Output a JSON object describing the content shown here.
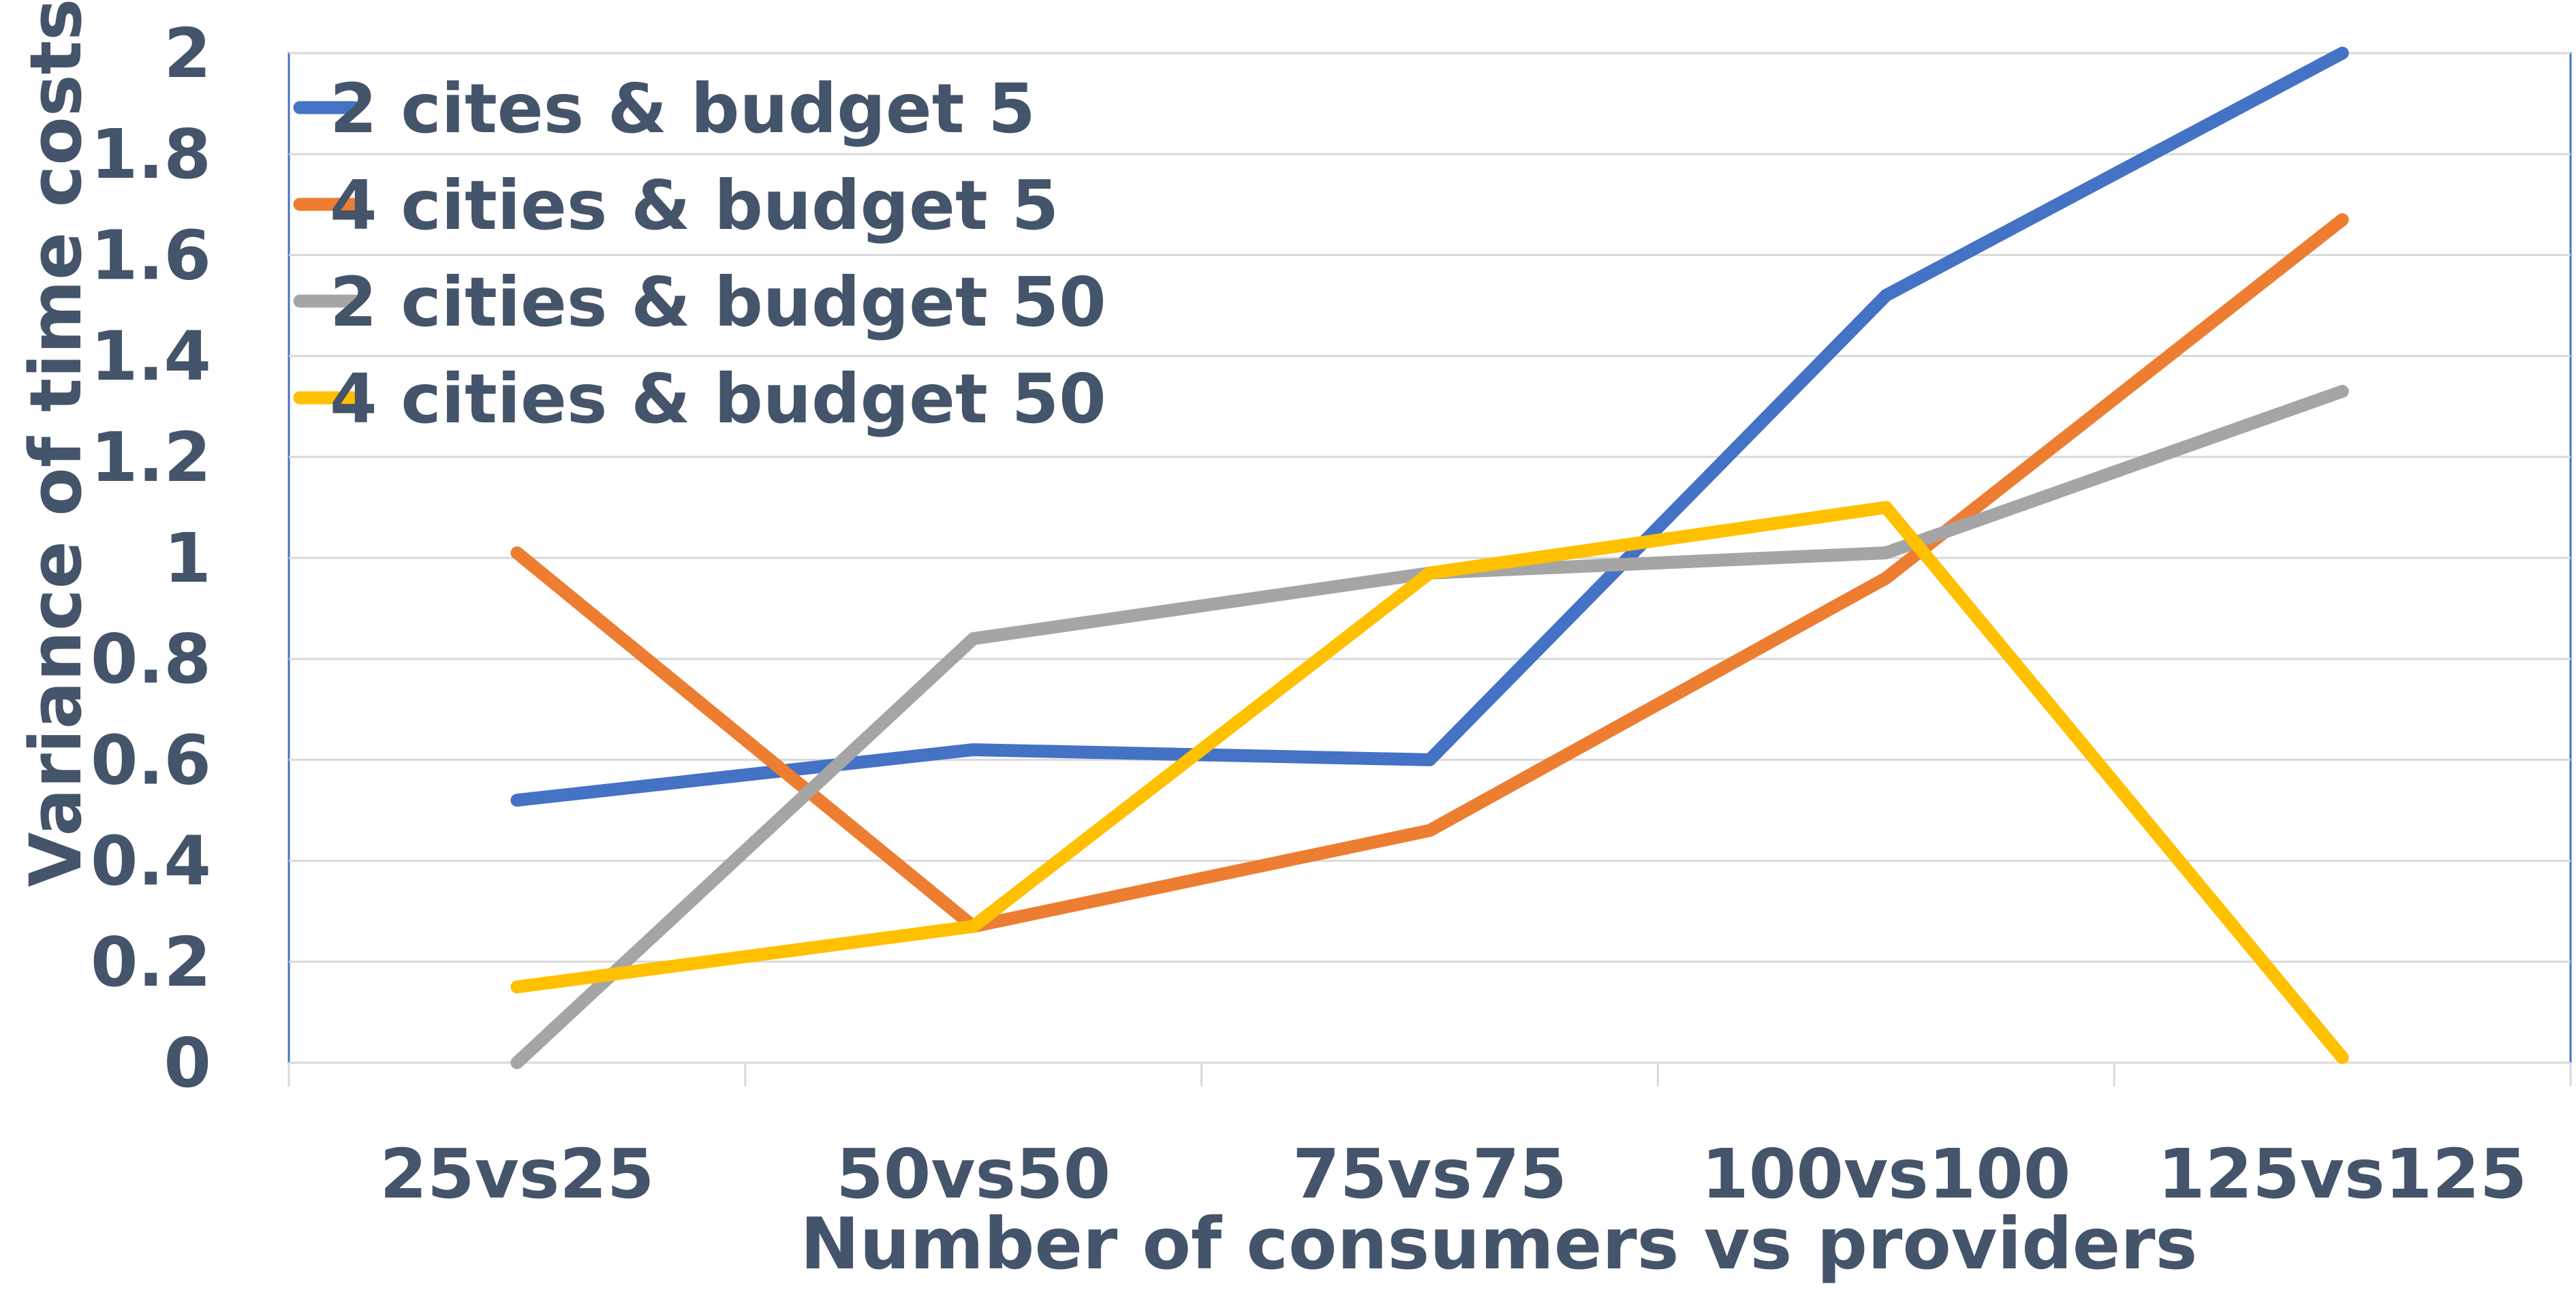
{
  "chart_data": {
    "type": "line",
    "title": "",
    "xlabel": "Number of consumers vs providers",
    "ylabel": "Variance of time costs",
    "categories": [
      "25vs25",
      "50vs50",
      "75vs75",
      "100vs100",
      "125vs125"
    ],
    "ylim": [
      0,
      2
    ],
    "yticks": [
      0,
      0.2,
      0.4,
      0.6,
      0.8,
      1,
      1.2,
      1.4,
      1.6,
      1.8,
      2
    ],
    "ytick_labels": [
      "0",
      "0.2",
      "0.4",
      "0.6",
      "0.8",
      "1",
      "1.2",
      "1.4",
      "1.6",
      "1.8",
      "2"
    ],
    "grid": true,
    "legend_position": "top-left",
    "series": [
      {
        "name": "2 cites & budget 5",
        "color": "#4472c4",
        "values": [
          0.52,
          0.62,
          0.6,
          1.52,
          2.0
        ]
      },
      {
        "name": "4 cities & budget 5",
        "color": "#ed7d31",
        "values": [
          1.01,
          0.27,
          0.46,
          0.96,
          1.67
        ]
      },
      {
        "name": "2 cities & budget 50",
        "color": "#a5a5a5",
        "values": [
          0.0,
          0.84,
          0.97,
          1.01,
          1.33
        ]
      },
      {
        "name": "4 cities & budget 50",
        "color": "#ffc000",
        "values": [
          0.15,
          0.27,
          0.97,
          1.1,
          0.01
        ]
      }
    ]
  }
}
